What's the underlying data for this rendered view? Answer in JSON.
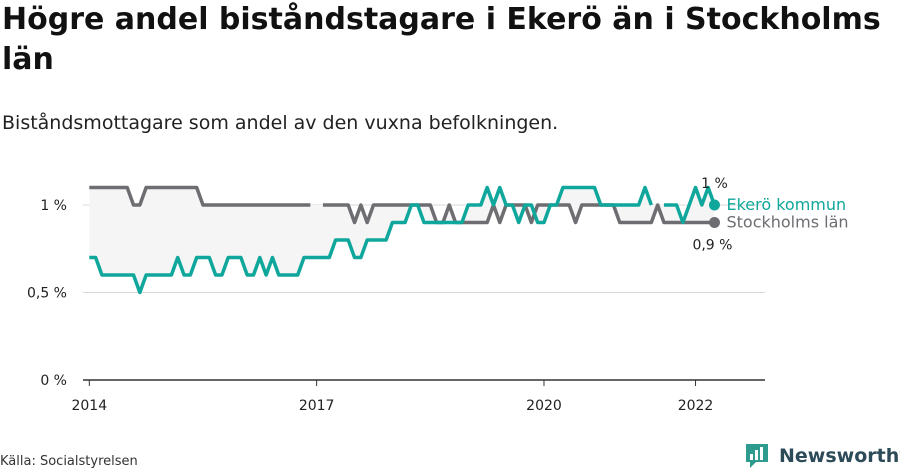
{
  "title": "Högre andel biståndstagare i Ekerö än i Stockholms län",
  "subtitle": "Biståndsmottagare som andel av den vuxna befolkningen.",
  "source": "Källa: Socialstyrelsen",
  "brand": {
    "name": "Newsworthy",
    "icon": "newsworthy-logo-icon"
  },
  "colors": {
    "ekero": "#0fa79b",
    "stockholm": "#6d6d72",
    "fill": "#f5f5f5",
    "grid": "#d8d8d8"
  },
  "chart_data": {
    "type": "line",
    "title": "Högre andel biståndstagare i Ekerö än i Stockholms län",
    "subtitle": "Biståndsmottagare som andel av den vuxna befolkningen.",
    "x_unit": "month",
    "xlim": [
      "2013-12",
      "2022-12"
    ],
    "ylim": [
      0,
      1.2
    ],
    "y_ticks": [
      {
        "value": 0,
        "label": "0 %"
      },
      {
        "value": 0.5,
        "label": "0,5 %"
      },
      {
        "value": 1,
        "label": "1 %"
      }
    ],
    "x_ticks": [
      {
        "value": "2014-01",
        "label": "2014"
      },
      {
        "value": "2017-01",
        "label": "2017"
      },
      {
        "value": "2020-01",
        "label": "2020"
      },
      {
        "value": "2022-01",
        "label": "2022"
      }
    ],
    "grid": true,
    "x": [
      "2014-01",
      "2014-02",
      "2014-03",
      "2014-04",
      "2014-05",
      "2014-06",
      "2014-07",
      "2014-08",
      "2014-09",
      "2014-10",
      "2014-11",
      "2014-12",
      "2015-01",
      "2015-02",
      "2015-03",
      "2015-04",
      "2015-05",
      "2015-06",
      "2015-07",
      "2015-08",
      "2015-09",
      "2015-10",
      "2015-11",
      "2015-12",
      "2016-01",
      "2016-02",
      "2016-03",
      "2016-04",
      "2016-05",
      "2016-06",
      "2016-07",
      "2016-08",
      "2016-09",
      "2016-10",
      "2016-11",
      "2016-12",
      "2017-01",
      "2017-02",
      "2017-03",
      "2017-04",
      "2017-05",
      "2017-06",
      "2017-07",
      "2017-08",
      "2017-09",
      "2017-10",
      "2017-11",
      "2017-12",
      "2018-01",
      "2018-02",
      "2018-03",
      "2018-04",
      "2018-05",
      "2018-06",
      "2018-07",
      "2018-08",
      "2018-09",
      "2018-10",
      "2018-11",
      "2018-12",
      "2019-01",
      "2019-02",
      "2019-03",
      "2019-04",
      "2019-05",
      "2019-06",
      "2019-07",
      "2019-08",
      "2019-09",
      "2019-10",
      "2019-11",
      "2019-12",
      "2020-01",
      "2020-02",
      "2020-03",
      "2020-04",
      "2020-05",
      "2020-06",
      "2020-07",
      "2020-08",
      "2020-09",
      "2020-10",
      "2020-11",
      "2020-12",
      "2021-01",
      "2021-02",
      "2021-03",
      "2021-04",
      "2021-05",
      "2021-06",
      "2021-07",
      "2021-08",
      "2021-09",
      "2021-10",
      "2021-11",
      "2021-12",
      "2022-01",
      "2022-02",
      "2022-03",
      "2022-04"
    ],
    "series": [
      {
        "name": "Ekerö kommun",
        "color": "#0fa79b",
        "end_label": "1 %",
        "values": [
          0.7,
          0.7,
          0.6,
          0.6,
          0.6,
          0.6,
          0.6,
          0.6,
          0.5,
          0.6,
          0.6,
          0.6,
          0.6,
          0.6,
          0.7,
          0.6,
          0.6,
          0.7,
          0.7,
          0.7,
          0.6,
          0.6,
          0.7,
          0.7,
          0.7,
          0.6,
          0.6,
          0.7,
          0.6,
          0.7,
          0.6,
          0.6,
          0.6,
          0.6,
          0.7,
          0.7,
          0.7,
          0.7,
          0.7,
          0.8,
          0.8,
          0.8,
          0.7,
          0.7,
          0.8,
          0.8,
          0.8,
          0.8,
          0.9,
          0.9,
          0.9,
          1.0,
          1.0,
          0.9,
          0.9,
          0.9,
          0.9,
          0.9,
          0.9,
          0.9,
          1.0,
          1.0,
          1.0,
          1.1,
          1.0,
          1.1,
          1.0,
          1.0,
          0.9,
          1.0,
          1.0,
          0.9,
          0.9,
          1.0,
          1.0,
          1.1,
          1.1,
          1.1,
          1.1,
          1.1,
          1.1,
          1.0,
          1.0,
          1.0,
          1.0,
          1.0,
          1.0,
          1.0,
          1.1,
          1.0,
          null,
          1.0,
          1.0,
          1.0,
          0.9,
          1.0,
          1.1,
          1.0,
          1.1,
          1.0
        ]
      },
      {
        "name": "Stockholms län",
        "color": "#6d6d72",
        "end_label": "0,9 %",
        "values": [
          1.1,
          1.1,
          1.1,
          1.1,
          1.1,
          1.1,
          1.1,
          1.0,
          1.0,
          1.1,
          1.1,
          1.1,
          1.1,
          1.1,
          1.1,
          1.1,
          1.1,
          1.1,
          1.0,
          1.0,
          1.0,
          1.0,
          1.0,
          1.0,
          1.0,
          1.0,
          1.0,
          1.0,
          1.0,
          1.0,
          1.0,
          1.0,
          1.0,
          1.0,
          1.0,
          1.0,
          null,
          1.0,
          1.0,
          1.0,
          1.0,
          1.0,
          0.9,
          1.0,
          0.9,
          1.0,
          1.0,
          1.0,
          1.0,
          1.0,
          1.0,
          1.0,
          1.0,
          1.0,
          1.0,
          0.9,
          0.9,
          1.0,
          0.9,
          0.9,
          0.9,
          0.9,
          0.9,
          0.9,
          1.0,
          0.9,
          1.0,
          1.0,
          1.0,
          1.0,
          0.9,
          1.0,
          1.0,
          1.0,
          1.0,
          1.0,
          1.0,
          0.9,
          1.0,
          1.0,
          1.0,
          1.0,
          1.0,
          1.0,
          0.9,
          0.9,
          0.9,
          0.9,
          0.9,
          0.9,
          1.0,
          0.9,
          0.9,
          0.9,
          0.9,
          0.9,
          0.9,
          0.9,
          0.9,
          0.9
        ]
      }
    ]
  }
}
